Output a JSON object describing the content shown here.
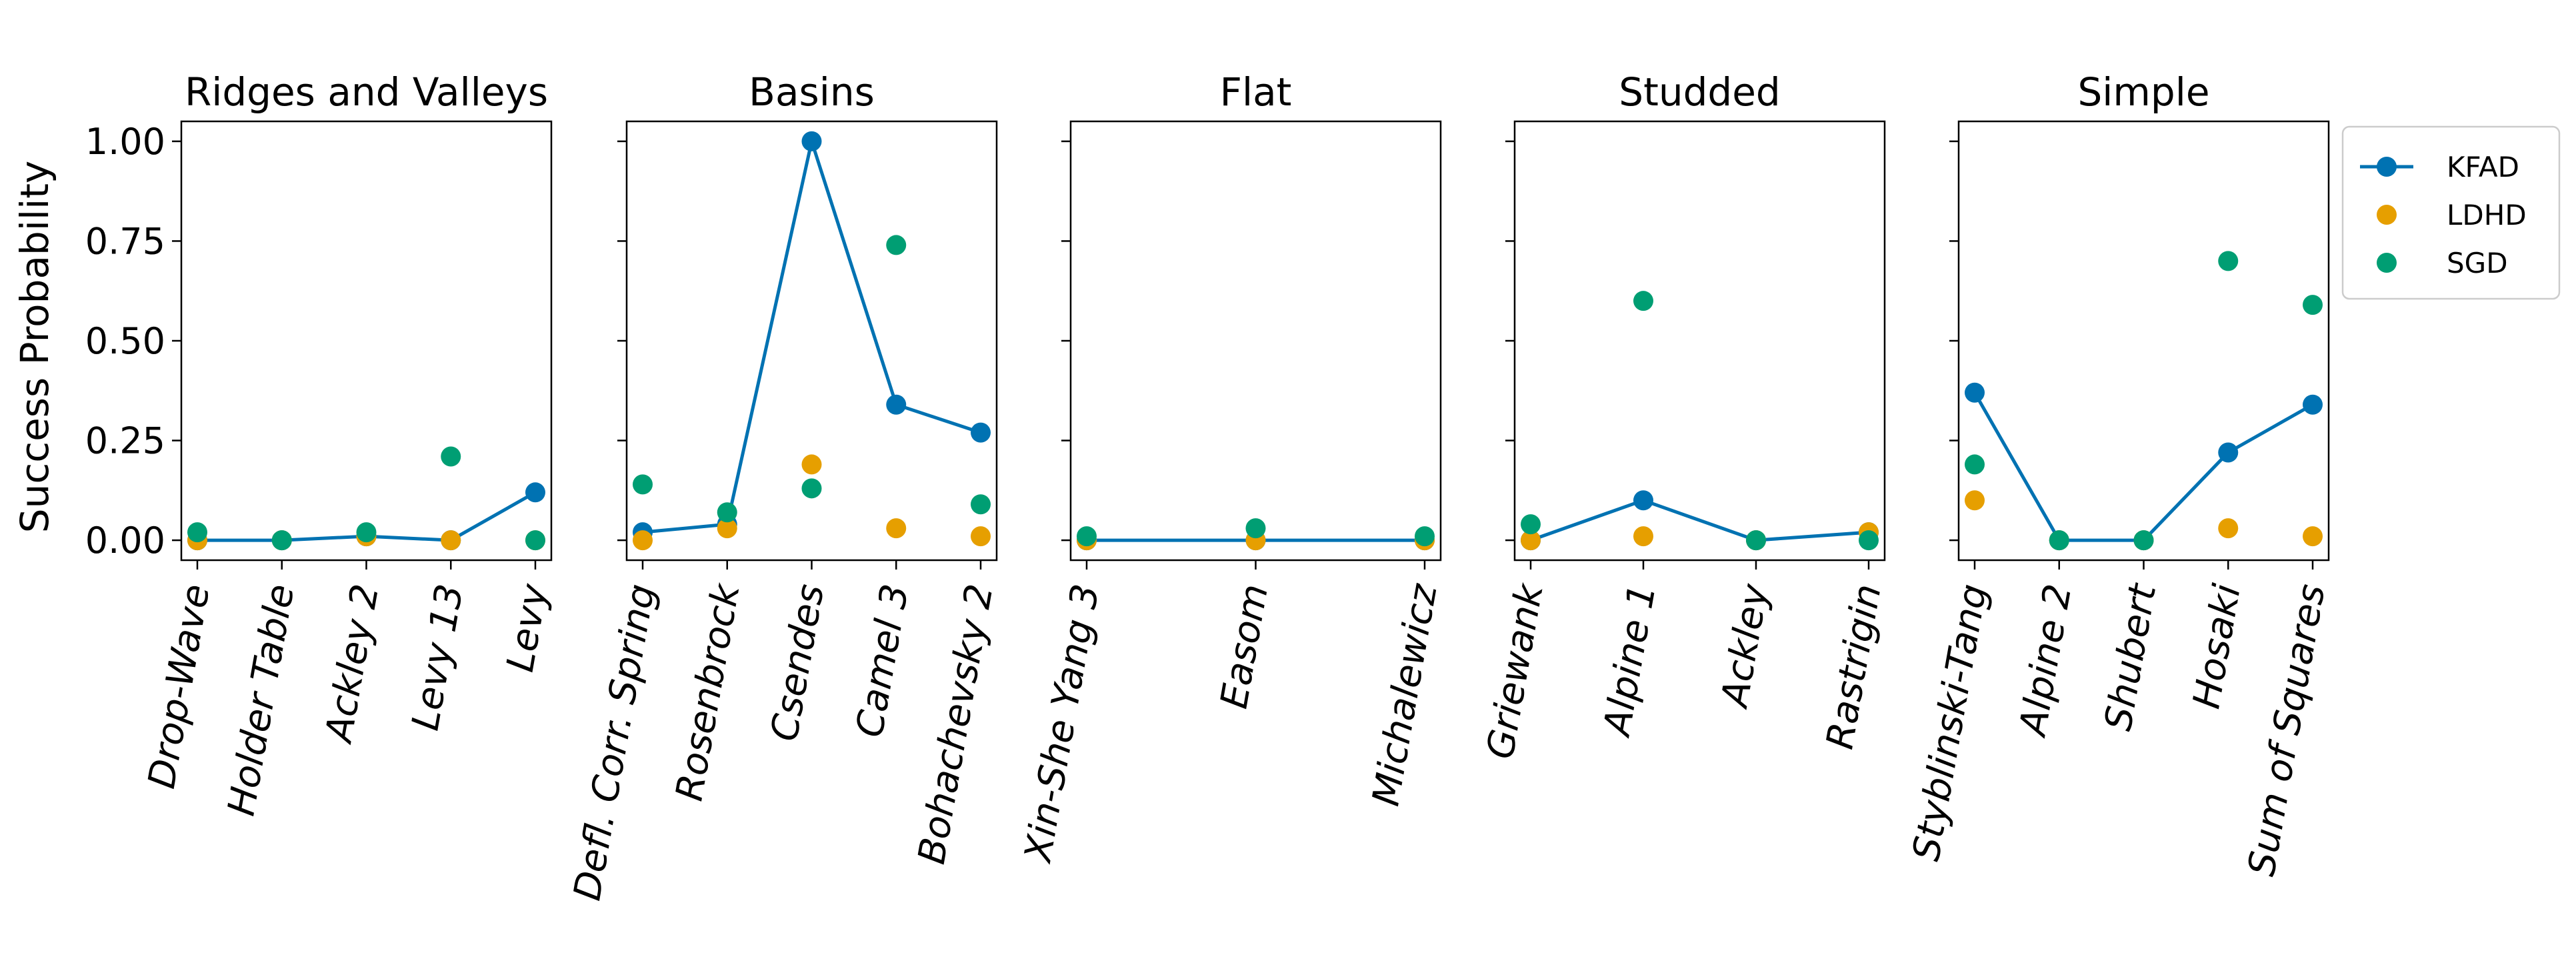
{
  "chart_data": {
    "type": "scatter",
    "ylabel": "Success Probability",
    "ylim": [
      -0.05,
      1.05
    ],
    "yticks": [
      "0.00",
      "0.25",
      "0.50",
      "0.75",
      "1.00"
    ],
    "legend": {
      "placement": "right"
    },
    "series": [
      {
        "name": "KFAD",
        "color": "#0072b2",
        "marker": "line+circle"
      },
      {
        "name": "LDHD",
        "color": "#e69f00",
        "marker": "circle"
      },
      {
        "name": "SGD",
        "color": "#009e73",
        "marker": "circle"
      }
    ],
    "panels": [
      {
        "title": "Ridges and Valleys",
        "categories": [
          "Drop-Wave",
          "Holder Table",
          "Ackley 2",
          "Levy 13",
          "Levy"
        ],
        "KFAD": [
          0.0,
          0.0,
          0.01,
          0.0,
          0.12
        ],
        "LDHD": [
          0.0,
          0.0,
          0.01,
          0.0,
          0.0
        ],
        "SGD": [
          0.02,
          0.0,
          0.02,
          0.21,
          0.0
        ]
      },
      {
        "title": "Basins",
        "categories": [
          "Defl. Corr. Spring",
          "Rosenbrock",
          "Csendes",
          "Camel 3",
          "Bohachevsky 2"
        ],
        "KFAD": [
          0.02,
          0.04,
          1.0,
          0.34,
          0.27
        ],
        "LDHD": [
          0.0,
          0.03,
          0.19,
          0.03,
          0.01
        ],
        "SGD": [
          0.14,
          0.07,
          0.13,
          0.74,
          0.09
        ]
      },
      {
        "title": "Flat",
        "categories": [
          "Xin-She Yang 3",
          "Easom",
          "Michalewicz"
        ],
        "KFAD": [
          0.0,
          0.0,
          0.0
        ],
        "LDHD": [
          0.0,
          0.0,
          0.0
        ],
        "SGD": [
          0.01,
          0.03,
          0.01
        ]
      },
      {
        "title": "Studded",
        "categories": [
          "Griewank",
          "Alpine 1",
          "Ackley",
          "Rastrigin"
        ],
        "KFAD": [
          0.0,
          0.1,
          0.0,
          0.02
        ],
        "LDHD": [
          0.0,
          0.01,
          0.0,
          0.02
        ],
        "SGD": [
          0.04,
          0.6,
          0.0,
          0.0
        ]
      },
      {
        "title": "Simple",
        "categories": [
          "Styblinski-Tang",
          "Alpine 2",
          "Shubert",
          "Hosaki",
          "Sum of Squares"
        ],
        "KFAD": [
          0.37,
          0.0,
          0.0,
          0.22,
          0.34
        ],
        "LDHD": [
          0.1,
          0.0,
          0.0,
          0.03,
          0.01
        ],
        "SGD": [
          0.19,
          0.0,
          0.0,
          0.7,
          0.59
        ]
      }
    ]
  }
}
